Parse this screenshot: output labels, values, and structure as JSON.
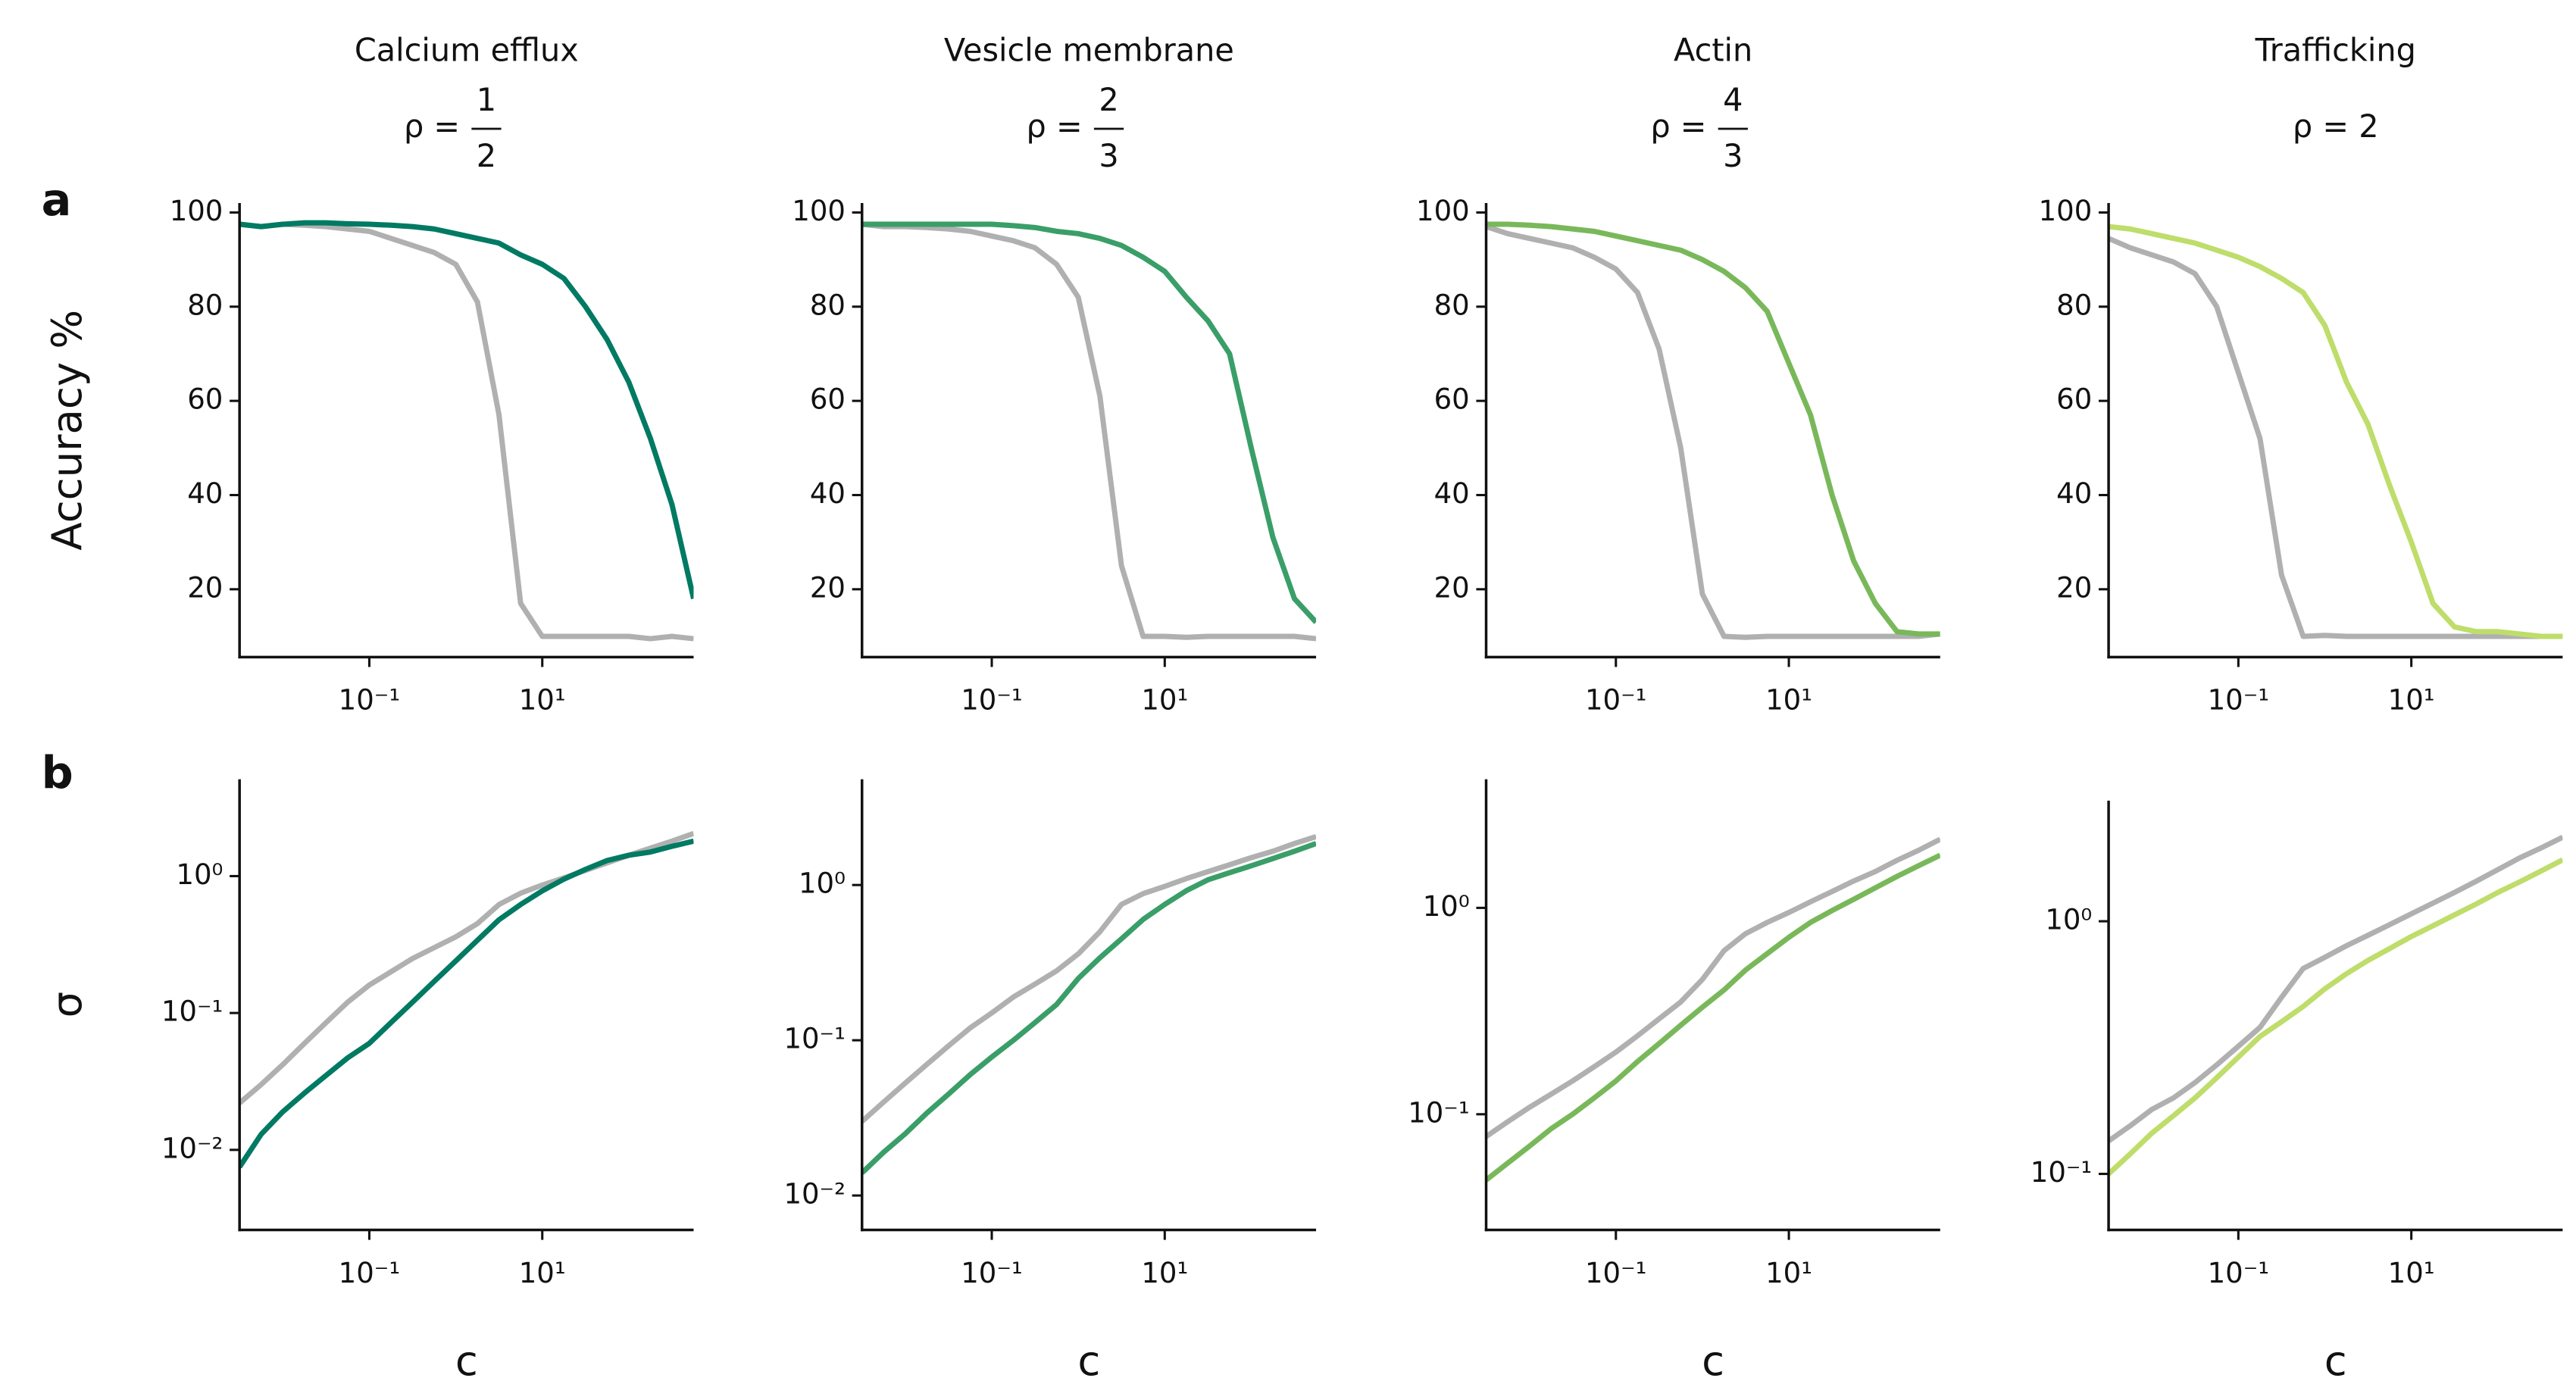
{
  "panel_labels": [
    "a",
    "b"
  ],
  "chart_data": [
    {
      "type": "line",
      "title": "Calcium efflux",
      "subtitle": "ρ =",
      "fraction": {
        "numerator": "1",
        "denominator": "2"
      },
      "ylabel": "Accuracy %",
      "log_x": true,
      "log_y": false,
      "x": [
        0.00316,
        0.00562,
        0.01,
        0.0178,
        0.0316,
        0.0562,
        0.1,
        0.178,
        0.316,
        0.562,
        1,
        1.78,
        3.16,
        5.62,
        10,
        17.8,
        31.6,
        56.2,
        100,
        178,
        316,
        562
      ],
      "xlim": [
        0.00316,
        562
      ],
      "xticks": [
        {
          "value": 0.1,
          "label": "10⁻¹"
        },
        {
          "value": 10,
          "label": "10¹"
        }
      ],
      "ylim": [
        5.6,
        102
      ],
      "yticks": [
        20,
        40,
        60,
        80,
        100
      ],
      "series": [
        {
          "color": "#b0b0b0",
          "values": [
            97.5,
            97,
            97.5,
            97.3,
            97,
            96.5,
            96,
            94.5,
            93,
            91.5,
            89,
            81,
            57,
            17,
            10,
            10,
            10,
            10,
            10,
            9.5,
            10,
            9.5
          ]
        },
        {
          "color": "#007a62",
          "values": [
            97.5,
            97,
            97.5,
            97.8,
            97.8,
            97.6,
            97.5,
            97.3,
            97,
            96.5,
            95.5,
            94.5,
            93.5,
            91,
            89,
            86,
            80,
            73,
            64,
            52,
            38,
            18
          ]
        }
      ]
    },
    {
      "type": "line",
      "title": "Vesicle membrane",
      "subtitle": "ρ =",
      "fraction": {
        "numerator": "2",
        "denominator": "3"
      },
      "log_x": true,
      "log_y": false,
      "x": [
        0.00316,
        0.00562,
        0.01,
        0.0178,
        0.0316,
        0.0562,
        0.1,
        0.178,
        0.316,
        0.562,
        1,
        1.78,
        3.16,
        5.62,
        10,
        17.8,
        31.6,
        56.2,
        100,
        178,
        316,
        562
      ],
      "xlim": [
        0.00316,
        562
      ],
      "xticks": [
        {
          "value": 0.1,
          "label": "10⁻¹"
        },
        {
          "value": 10,
          "label": "10¹"
        }
      ],
      "ylim": [
        5.6,
        102
      ],
      "yticks": [
        20,
        40,
        60,
        80,
        100
      ],
      "series": [
        {
          "color": "#b0b0b0",
          "values": [
            97.5,
            97,
            97,
            96.8,
            96.5,
            96,
            95,
            94,
            92.5,
            89,
            82,
            61,
            25,
            10,
            10,
            9.8,
            10,
            10,
            10,
            10,
            10,
            9.5
          ]
        },
        {
          "color": "#3a9e68",
          "values": [
            97.5,
            97.5,
            97.5,
            97.5,
            97.5,
            97.5,
            97.5,
            97.2,
            96.8,
            96,
            95.5,
            94.5,
            93,
            90.5,
            87.5,
            82,
            77,
            70,
            50,
            31,
            18,
            13
          ]
        }
      ]
    },
    {
      "type": "line",
      "title": "Actin",
      "subtitle": "ρ =",
      "fraction": {
        "numerator": "4",
        "denominator": "3"
      },
      "log_x": true,
      "log_y": false,
      "x": [
        0.00316,
        0.00562,
        0.01,
        0.0178,
        0.0316,
        0.0562,
        0.1,
        0.178,
        0.316,
        0.562,
        1,
        1.78,
        3.16,
        5.62,
        10,
        17.8,
        31.6,
        56.2,
        100,
        178,
        316,
        562
      ],
      "xlim": [
        0.00316,
        562
      ],
      "xticks": [
        {
          "value": 0.1,
          "label": "10⁻¹"
        },
        {
          "value": 10,
          "label": "10¹"
        }
      ],
      "ylim": [
        5.6,
        102
      ],
      "yticks": [
        20,
        40,
        60,
        80,
        100
      ],
      "series": [
        {
          "color": "#b0b0b0",
          "values": [
            97,
            95.5,
            94.5,
            93.5,
            92.5,
            90.5,
            88,
            83,
            71,
            50,
            19,
            10,
            9.8,
            10,
            10,
            10,
            10,
            10,
            10,
            10,
            10,
            10.5
          ]
        },
        {
          "color": "#79b85a",
          "values": [
            97.5,
            97.5,
            97.3,
            97,
            96.5,
            96,
            95,
            94,
            93,
            92,
            90,
            87.5,
            84,
            79,
            68,
            57,
            40,
            26,
            17,
            11,
            10.5,
            10.5
          ]
        }
      ]
    },
    {
      "type": "line",
      "title": "Trafficking",
      "subtitle": "ρ = 2",
      "log_x": true,
      "log_y": false,
      "x": [
        0.00316,
        0.00562,
        0.01,
        0.0178,
        0.0316,
        0.0562,
        0.1,
        0.178,
        0.316,
        0.562,
        1,
        1.78,
        3.16,
        5.62,
        10,
        17.8,
        31.6,
        56.2,
        100,
        178,
        316,
        562
      ],
      "xlim": [
        0.00316,
        562
      ],
      "xticks": [
        {
          "value": 0.1,
          "label": "10⁻¹"
        },
        {
          "value": 10,
          "label": "10¹"
        }
      ],
      "ylim": [
        5.6,
        102
      ],
      "yticks": [
        20,
        40,
        60,
        80,
        100
      ],
      "series": [
        {
          "color": "#b0b0b0",
          "values": [
            94.5,
            92.5,
            91,
            89.5,
            87,
            80,
            66,
            52,
            23,
            10,
            10.2,
            10,
            10,
            10,
            10,
            10,
            10,
            10,
            10,
            10,
            10,
            10
          ]
        },
        {
          "color": "#bedd6a",
          "values": [
            97,
            96.5,
            95.5,
            94.5,
            93.5,
            92,
            90.5,
            88.5,
            86,
            83,
            76,
            64,
            55,
            42,
            30,
            17,
            12,
            11,
            11,
            10.5,
            10,
            10
          ]
        }
      ]
    },
    {
      "type": "line",
      "ylabel": "σ",
      "xlabel": "c",
      "log_x": true,
      "log_y": true,
      "x": [
        0.00316,
        0.00562,
        0.01,
        0.0178,
        0.0316,
        0.0562,
        0.1,
        0.178,
        0.316,
        0.562,
        1,
        1.78,
        3.16,
        5.62,
        10,
        17.8,
        31.6,
        56.2,
        100,
        178,
        316,
        562
      ],
      "xlim": [
        0.00316,
        562
      ],
      "xticks": [
        {
          "value": 0.1,
          "label": "10⁻¹"
        },
        {
          "value": 10,
          "label": "10¹"
        }
      ],
      "ylim": [
        0.0026,
        5.1
      ],
      "yticks": [
        {
          "value": 0.01,
          "label": "10⁻²"
        },
        {
          "value": 0.1,
          "label": "10⁻¹"
        },
        {
          "value": 1,
          "label": "10⁰"
        }
      ],
      "series": [
        {
          "color": "#b0b0b0",
          "values": [
            0.022,
            0.03,
            0.042,
            0.06,
            0.085,
            0.12,
            0.16,
            0.2,
            0.25,
            0.3,
            0.36,
            0.45,
            0.62,
            0.75,
            0.86,
            0.97,
            1.1,
            1.25,
            1.42,
            1.6,
            1.8,
            2.05
          ]
        },
        {
          "color": "#007a62",
          "values": [
            0.0075,
            0.013,
            0.019,
            0.026,
            0.035,
            0.047,
            0.06,
            0.085,
            0.12,
            0.17,
            0.24,
            0.34,
            0.48,
            0.62,
            0.78,
            0.95,
            1.12,
            1.3,
            1.42,
            1.5,
            1.65,
            1.8
          ]
        }
      ]
    },
    {
      "type": "line",
      "xlabel": "c",
      "log_x": true,
      "log_y": true,
      "x": [
        0.00316,
        0.00562,
        0.01,
        0.0178,
        0.0316,
        0.0562,
        0.1,
        0.178,
        0.316,
        0.562,
        1,
        1.78,
        3.16,
        5.62,
        10,
        17.8,
        31.6,
        56.2,
        100,
        178,
        316,
        562
      ],
      "xlim": [
        0.00316,
        562
      ],
      "xticks": [
        {
          "value": 0.1,
          "label": "10⁻¹"
        },
        {
          "value": 10,
          "label": "10¹"
        }
      ],
      "ylim": [
        0.006,
        4.8
      ],
      "yticks": [
        {
          "value": 0.01,
          "label": "10⁻²"
        },
        {
          "value": 0.1,
          "label": "10⁻¹"
        },
        {
          "value": 1,
          "label": "10⁰"
        }
      ],
      "series": [
        {
          "color": "#b0b0b0",
          "values": [
            0.03,
            0.04,
            0.053,
            0.07,
            0.092,
            0.12,
            0.15,
            0.19,
            0.23,
            0.28,
            0.36,
            0.5,
            0.75,
            0.88,
            0.98,
            1.1,
            1.22,
            1.35,
            1.5,
            1.65,
            1.85,
            2.05
          ]
        },
        {
          "color": "#3a9e68",
          "values": [
            0.014,
            0.019,
            0.025,
            0.034,
            0.045,
            0.06,
            0.078,
            0.1,
            0.13,
            0.17,
            0.25,
            0.34,
            0.45,
            0.6,
            0.75,
            0.92,
            1.08,
            1.2,
            1.33,
            1.48,
            1.65,
            1.85
          ]
        }
      ]
    },
    {
      "type": "line",
      "xlabel": "c",
      "log_x": true,
      "log_y": true,
      "x": [
        0.00316,
        0.00562,
        0.01,
        0.0178,
        0.0316,
        0.0562,
        0.1,
        0.178,
        0.316,
        0.562,
        1,
        1.78,
        3.16,
        5.62,
        10,
        17.8,
        31.6,
        56.2,
        100,
        178,
        316,
        562
      ],
      "xlim": [
        0.00316,
        562
      ],
      "xticks": [
        {
          "value": 0.1,
          "label": "10⁻¹"
        },
        {
          "value": 10,
          "label": "10¹"
        }
      ],
      "ylim": [
        0.0275,
        4.2
      ],
      "yticks": [
        {
          "value": 0.1,
          "label": "10⁻¹"
        },
        {
          "value": 1,
          "label": "10⁰"
        }
      ],
      "series": [
        {
          "color": "#b0b0b0",
          "values": [
            0.078,
            0.092,
            0.108,
            0.125,
            0.145,
            0.17,
            0.2,
            0.24,
            0.29,
            0.35,
            0.45,
            0.62,
            0.75,
            0.85,
            0.95,
            1.07,
            1.2,
            1.35,
            1.5,
            1.7,
            1.9,
            2.15
          ]
        },
        {
          "color": "#79b85a",
          "values": [
            0.048,
            0.058,
            0.07,
            0.085,
            0.1,
            0.12,
            0.145,
            0.18,
            0.22,
            0.27,
            0.33,
            0.4,
            0.5,
            0.6,
            0.72,
            0.85,
            0.97,
            1.1,
            1.25,
            1.42,
            1.6,
            1.8
          ]
        }
      ]
    },
    {
      "type": "line",
      "xlabel": "c",
      "log_x": true,
      "log_y": true,
      "x": [
        0.00316,
        0.00562,
        0.01,
        0.0178,
        0.0316,
        0.0562,
        0.1,
        0.178,
        0.316,
        0.562,
        1,
        1.78,
        3.16,
        5.62,
        10,
        17.8,
        31.6,
        56.2,
        100,
        178,
        316,
        562
      ],
      "xlim": [
        0.00316,
        562
      ],
      "xticks": [
        {
          "value": 0.1,
          "label": "10⁻¹"
        },
        {
          "value": 10,
          "label": "10¹"
        }
      ],
      "ylim": [
        0.06,
        3.0
      ],
      "yticks": [
        {
          "value": 0.1,
          "label": "10⁻¹"
        },
        {
          "value": 1,
          "label": "10⁰"
        }
      ],
      "series": [
        {
          "color": "#b0b0b0",
          "values": [
            0.135,
            0.155,
            0.18,
            0.2,
            0.23,
            0.27,
            0.32,
            0.38,
            0.5,
            0.65,
            0.72,
            0.8,
            0.88,
            0.97,
            1.07,
            1.18,
            1.3,
            1.44,
            1.6,
            1.78,
            1.95,
            2.15
          ]
        },
        {
          "color": "#bedd6a",
          "values": [
            0.1,
            0.12,
            0.145,
            0.17,
            0.2,
            0.24,
            0.29,
            0.35,
            0.4,
            0.46,
            0.54,
            0.62,
            0.7,
            0.78,
            0.87,
            0.96,
            1.06,
            1.17,
            1.3,
            1.43,
            1.58,
            1.75
          ]
        }
      ]
    }
  ]
}
